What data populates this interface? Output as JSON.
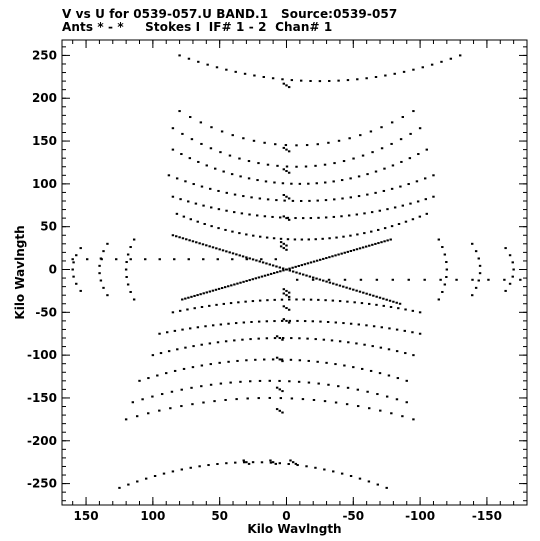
{
  "chart_data": {
    "type": "scatter",
    "title_line1": "V vs U for 0539-057.U BAND.1   Source:0539-057",
    "title_line2": "Ants * - *     Stokes I  IF# 1 - 2  Chan# 1",
    "xlabel": "Kilo Wavlngth",
    "ylabel": "Kilo Wavlngth",
    "xlim": [
      168,
      -180
    ],
    "ylim": [
      -275,
      268
    ],
    "x_ticks": [
      150,
      100,
      50,
      0,
      -50,
      -100,
      -150
    ],
    "y_ticks": [
      250,
      200,
      150,
      100,
      50,
      0,
      -50,
      -100,
      -150,
      -200,
      -250
    ],
    "x_tick_labels": [
      "150",
      "100",
      "50",
      "0",
      "-50",
      "-100",
      "-150"
    ],
    "y_tick_labels": [
      "250",
      "200",
      "150",
      "100",
      "50",
      "0",
      "-50",
      "-100",
      "-150",
      "-200",
      "-250"
    ],
    "grid": false,
    "marker_color": "#000000",
    "tracks": [
      {
        "u0": 0,
        "v0": 0,
        "u1": 85,
        "v1": 40,
        "n": 34
      },
      {
        "u0": 0,
        "v0": 0,
        "u1": 78,
        "v1": -35,
        "n": 34
      },
      {
        "u0": 0,
        "v0": 0,
        "u1": -85,
        "v1": -40,
        "n": 34
      },
      {
        "u0": 0,
        "v0": 0,
        "u1": -78,
        "v1": 35,
        "n": 34
      },
      {
        "u0": 8,
        "v0": 12,
        "u1": 160,
        "v1": 12,
        "n": 14
      },
      {
        "u0": -8,
        "v0": -12,
        "u1": -175,
        "v1": -12,
        "n": 14
      }
    ],
    "arcs": [
      {
        "u0": 80,
        "u1": -95,
        "v_end": 185,
        "v_mid": 145,
        "n": 22
      },
      {
        "u0": 85,
        "u1": -100,
        "v_end": 165,
        "v_mid": 120,
        "n": 26
      },
      {
        "u0": 85,
        "u1": -105,
        "v_end": 140,
        "v_mid": 100,
        "n": 30
      },
      {
        "u0": 88,
        "u1": -110,
        "v_end": 110,
        "v_mid": 80,
        "n": 32
      },
      {
        "u0": 85,
        "u1": -110,
        "v_end": 85,
        "v_mid": 60,
        "n": 34
      },
      {
        "u0": 82,
        "u1": -105,
        "v_end": 65,
        "v_mid": 35,
        "n": 36
      },
      {
        "u0": 85,
        "u1": -100,
        "v_end": -50,
        "v_mid": -35,
        "n": 34
      },
      {
        "u0": 95,
        "u1": -100,
        "v_end": -75,
        "v_mid": -60,
        "n": 34
      },
      {
        "u0": 100,
        "u1": -95,
        "v_end": -100,
        "v_mid": -80,
        "n": 32
      },
      {
        "u0": 110,
        "u1": -90,
        "v_end": -130,
        "v_mid": -105,
        "n": 30
      },
      {
        "u0": 115,
        "u1": -90,
        "v_end": -155,
        "v_mid": -130,
        "n": 28
      },
      {
        "u0": 120,
        "u1": -95,
        "v_end": -175,
        "v_mid": -150,
        "n": 26
      },
      {
        "u0": 80,
        "u1": -130,
        "v_end": 250,
        "v_mid": 220,
        "n": 30
      },
      {
        "u0": 125,
        "u1": -75,
        "v_end": -255,
        "v_mid": -225,
        "n": 30
      }
    ],
    "radial_arcs": [
      {
        "u_mid": 160,
        "v_span": 25,
        "n": 6
      },
      {
        "u_mid": 140,
        "v_span": 30,
        "n": 7
      },
      {
        "u_mid": 120,
        "v_span": 35,
        "n": 8
      },
      {
        "u_mid": -120,
        "v_span": 35,
        "n": 8
      },
      {
        "u_mid": -145,
        "v_span": 30,
        "n": 7
      },
      {
        "u_mid": -170,
        "v_span": 25,
        "n": 6
      }
    ],
    "central_column": [
      {
        "u": 0,
        "v": 215
      },
      {
        "u": 0,
        "v": 140
      },
      {
        "u": 0,
        "v": 115
      },
      {
        "u": 0,
        "v": 85
      },
      {
        "u": 0,
        "v": 60
      },
      {
        "u": 2,
        "v": 30
      },
      {
        "u": 2,
        "v": 25
      },
      {
        "u": 0,
        "v": -25
      },
      {
        "u": 0,
        "v": -30
      },
      {
        "u": 0,
        "v": -45
      },
      {
        "u": 0,
        "v": -60
      },
      {
        "u": 5,
        "v": -80
      },
      {
        "u": 5,
        "v": -105
      },
      {
        "u": 5,
        "v": -140
      },
      {
        "u": 5,
        "v": -165
      },
      {
        "u": 30,
        "v": -225
      },
      {
        "u": 10,
        "v": -225
      },
      {
        "u": -5,
        "v": -225
      }
    ]
  }
}
